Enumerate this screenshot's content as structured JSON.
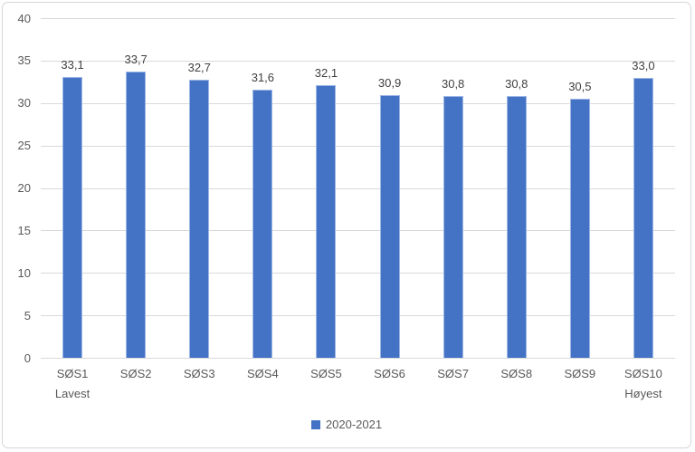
{
  "chart_data": {
    "type": "bar",
    "title": "",
    "categories": [
      [
        "SØS1",
        "Lavest"
      ],
      [
        "SØS2"
      ],
      [
        "SØS3"
      ],
      [
        "SØS4"
      ],
      [
        "SØS5"
      ],
      [
        "SØS6"
      ],
      [
        "SØS7"
      ],
      [
        "SØS8"
      ],
      [
        "SØS9"
      ],
      [
        "SØS10",
        "Høyest"
      ]
    ],
    "series": [
      {
        "name": "2020-2021",
        "color": "#4472C4",
        "values": [
          33.1,
          33.7,
          32.7,
          31.6,
          32.1,
          30.9,
          30.8,
          30.8,
          30.5,
          33.0
        ]
      }
    ],
    "value_labels": [
      "33,1",
      "33,7",
      "32,7",
      "31,6",
      "32,1",
      "30,9",
      "30,8",
      "30,8",
      "30,5",
      "33,0"
    ],
    "xlabel": "",
    "ylabel": "",
    "ylim": [
      0,
      40
    ],
    "yticks": [
      0,
      5,
      10,
      15,
      20,
      25,
      30,
      35,
      40
    ],
    "grid": true,
    "legend_position": "bottom"
  },
  "colors": {
    "bar": "#4472C4",
    "bar_edge": "#9DB7E4",
    "gridline": "#D9D9D9",
    "axis_line": "#D9D9D9",
    "text": "#595959",
    "value_label_text": "#404040",
    "frame_border": "#D6D6D6",
    "background": "#FFFFFF"
  }
}
